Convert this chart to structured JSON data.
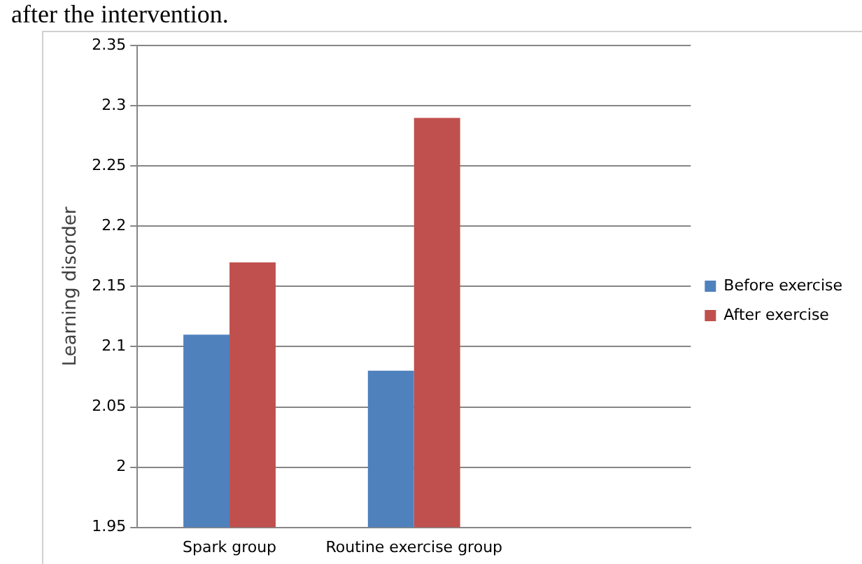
{
  "chart_data": {
    "type": "bar",
    "ylabel": "Learning disorder",
    "annotations": [
      "after the intervention."
    ],
    "categories": [
      "Spark group",
      "Routine exercise group",
      null
    ],
    "series": [
      {
        "name": "Before exercise",
        "color": "#4f81bd",
        "values": [
          2.11,
          2.08,
          null
        ]
      },
      {
        "name": "After exercise",
        "color": "#c0504d",
        "values": [
          2.17,
          2.29,
          null
        ]
      }
    ],
    "ylim": [
      1.95,
      2.35
    ],
    "yticks": [
      1.95,
      2,
      2.05,
      2.1,
      2.15,
      2.2,
      2.25,
      2.3,
      2.35
    ],
    "grid": "y",
    "legend": "right"
  }
}
